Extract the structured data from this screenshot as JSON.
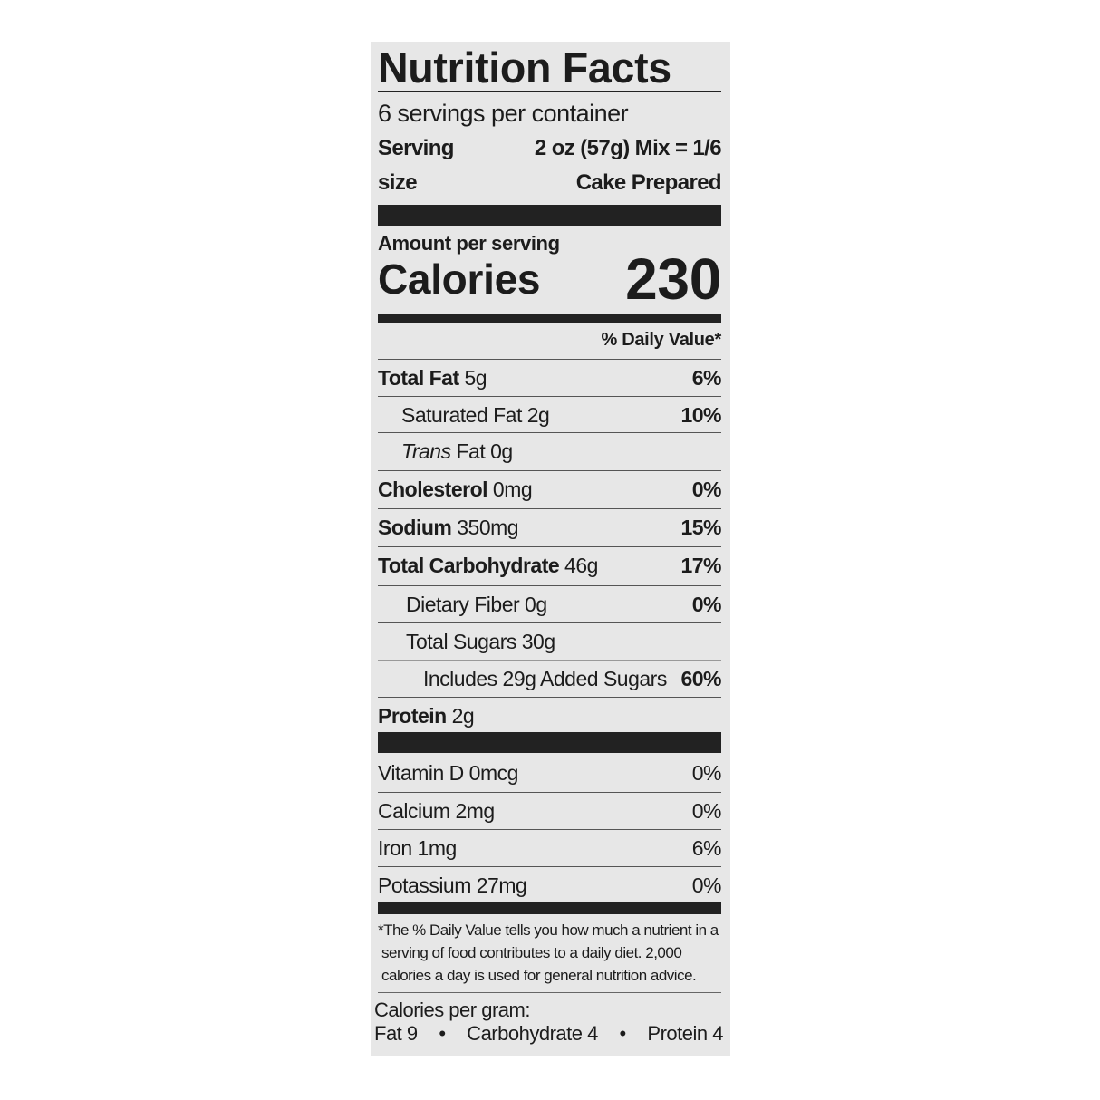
{
  "title": "Nutrition Facts",
  "servings": "6 servings per container",
  "serving_size": {
    "label_line1": "Serving",
    "label_line2": "size",
    "value_line1": "2 oz (57g) Mix = 1/6",
    "value_line2": "Cake Prepared"
  },
  "amount_per_serving": "Amount per serving",
  "calories": {
    "label": "Calories",
    "value": "230"
  },
  "daily_value_header": "% Daily Value*",
  "nutrients": [
    {
      "name": "Total Fat",
      "amount": "5g",
      "dv": "6%"
    },
    {
      "name": "Saturated Fat",
      "amount": "2g",
      "dv": "10%"
    },
    {
      "name": "Trans",
      "name_suffix": "Fat",
      "amount": "0g",
      "dv": ""
    },
    {
      "name": "Cholesterol",
      "amount": "0mg",
      "dv": "0%"
    },
    {
      "name": "Sodium",
      "amount": "350mg",
      "dv": "15%"
    },
    {
      "name": "Total Carbohydrate",
      "amount": "46g",
      "dv": "17%"
    },
    {
      "name": "Dietary Fiber",
      "amount": "0g",
      "dv": "0%"
    },
    {
      "name": "Total Sugars",
      "amount": "30g",
      "dv": ""
    },
    {
      "name": "Includes 29g Added Sugars",
      "amount": "",
      "dv": "60%"
    },
    {
      "name": "Protein",
      "amount": "2g",
      "dv": ""
    }
  ],
  "vitamins": [
    {
      "name": "Vitamin D",
      "amount": "0mcg",
      "dv": "0%"
    },
    {
      "name": "Calcium",
      "amount": "2mg",
      "dv": "0%"
    },
    {
      "name": "Iron",
      "amount": "1mg",
      "dv": "6%"
    },
    {
      "name": "Potassium",
      "amount": "27mg",
      "dv": "0%"
    }
  ],
  "footnote": "*The % Daily Value tells you how much a nutrient in a serving of food contributes to a daily diet. 2,000 calories a day is used for general nutrition advice.",
  "calories_per_gram": {
    "label": "Calories per gram:",
    "fat": "Fat 9",
    "carb": "Carbohydrate 4",
    "protein": "Protein 4",
    "separator": "•"
  }
}
